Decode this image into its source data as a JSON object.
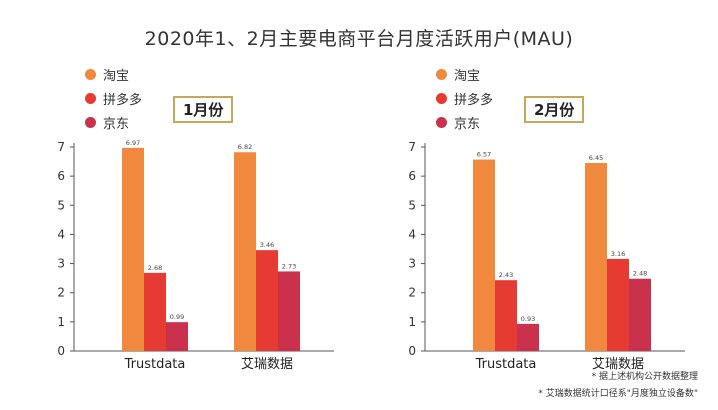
{
  "title": "2020年1、2月主要电商平台月度活跃用户(MAU)",
  "legend": [
    {
      "name": "淘宝",
      "color": "#f0883e"
    },
    {
      "name": "拼多多",
      "color": "#e63b32"
    },
    {
      "name": "京东",
      "color": "#c9314d"
    }
  ],
  "chart_data": [
    {
      "type": "bar",
      "badge": "1月份",
      "categories": [
        "Trustdata",
        "艾瑞数据"
      ],
      "series": [
        {
          "name": "淘宝",
          "values": [
            6.97,
            6.82
          ]
        },
        {
          "name": "拼多多",
          "values": [
            2.68,
            3.46
          ]
        },
        {
          "name": "京东",
          "values": [
            0.99,
            2.73
          ]
        }
      ],
      "data_labels": [
        [
          "6.97",
          "2.68",
          "0.99"
        ],
        [
          "6.82",
          "3.46",
          "2.73"
        ]
      ],
      "yticks": [
        "0",
        "1",
        "2",
        "3",
        "4",
        "5",
        "6",
        "7"
      ],
      "ylim": [
        0,
        7
      ]
    },
    {
      "type": "bar",
      "badge": "2月份",
      "categories": [
        "Trustdata",
        "艾瑞数据"
      ],
      "series": [
        {
          "name": "淘宝",
          "values": [
            6.57,
            6.45
          ]
        },
        {
          "name": "拼多多",
          "values": [
            2.43,
            3.16
          ]
        },
        {
          "name": "京东",
          "values": [
            0.93,
            2.48
          ]
        }
      ],
      "data_labels": [
        [
          "6.57",
          "2.43",
          "0.93"
        ],
        [
          "6.45",
          "3.16",
          "2.48"
        ]
      ],
      "yticks": [
        "0",
        "1",
        "2",
        "3",
        "4",
        "5",
        "6",
        "7"
      ],
      "ylim": [
        0,
        7
      ]
    }
  ],
  "footnote": [
    "* 据上述机构公开数据整理",
    "* 艾瑞数据统计口径系\"月度独立设备数\""
  ]
}
